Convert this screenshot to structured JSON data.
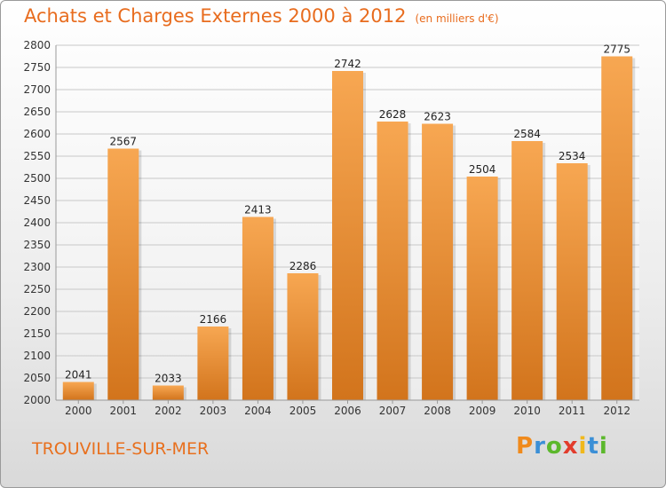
{
  "chart_data": {
    "type": "bar",
    "title": "Achats et Charges Externes 2000 à 2012",
    "unit": "(en milliers d'€)",
    "categories": [
      "2000",
      "2001",
      "2002",
      "2003",
      "2004",
      "2005",
      "2006",
      "2007",
      "2008",
      "2009",
      "2010",
      "2011",
      "2012"
    ],
    "values": [
      2041,
      2567,
      2033,
      2166,
      2413,
      2286,
      2742,
      2628,
      2623,
      2504,
      2584,
      2534,
      2775
    ],
    "ylim": [
      2000,
      2800
    ],
    "yticks": [
      2000,
      2050,
      2100,
      2150,
      2200,
      2250,
      2300,
      2350,
      2400,
      2450,
      2500,
      2550,
      2600,
      2650,
      2700,
      2750,
      2800
    ],
    "grid": true,
    "bar_color_top": "#f7a752",
    "bar_color_bottom": "#d2741c"
  },
  "footer": {
    "city": "TROUVILLE-SUR-MER",
    "logo": {
      "letters": [
        "P",
        "r",
        "o",
        "x",
        "i",
        "t",
        "i"
      ],
      "colors": [
        "#f08a1c",
        "#3b8fd6",
        "#5cb82c",
        "#e23c2c",
        "#f0b81c",
        "#3b8fd6",
        "#5cb82c"
      ]
    }
  }
}
